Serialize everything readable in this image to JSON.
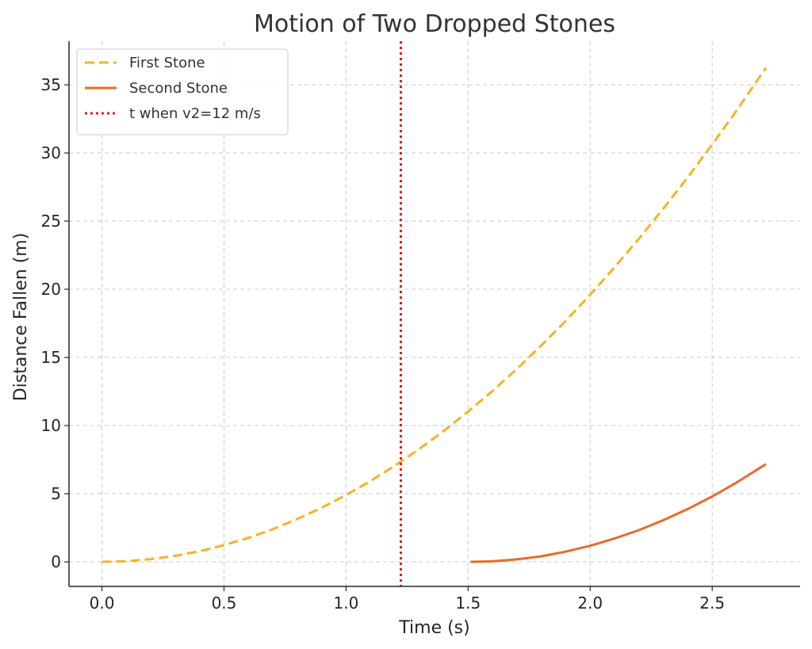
{
  "chart_data": {
    "type": "line",
    "title": "Motion of Two Dropped Stones",
    "xlabel": "Time (s)",
    "ylabel": "Distance Fallen (m)",
    "xlim": [
      -0.135,
      2.86
    ],
    "ylim": [
      -1.8,
      38.2
    ],
    "xticks": [
      0.0,
      0.5,
      1.0,
      1.5,
      2.0,
      2.5
    ],
    "xtick_labels": [
      "0.0",
      "0.5",
      "1.0",
      "1.5",
      "2.0",
      "2.5"
    ],
    "yticks": [
      0,
      5,
      10,
      15,
      20,
      25,
      30,
      35
    ],
    "ytick_labels": [
      "0",
      "5",
      "10",
      "15",
      "20",
      "25",
      "30",
      "35"
    ],
    "grid": true,
    "legend_position": "top-left",
    "series": [
      {
        "name": "First Stone",
        "color": "#f5b324",
        "style": "dashed",
        "x": [
          0.0,
          0.1,
          0.2,
          0.3,
          0.4,
          0.5,
          0.6,
          0.7,
          0.8,
          0.9,
          1.0,
          1.1,
          1.2,
          1.3,
          1.4,
          1.5,
          1.6,
          1.7,
          1.8,
          1.9,
          2.0,
          2.1,
          2.2,
          2.3,
          2.4,
          2.5,
          2.6,
          2.72
        ],
        "y": [
          0.0,
          0.05,
          0.2,
          0.44,
          0.78,
          1.23,
          1.76,
          2.4,
          3.14,
          3.97,
          4.9,
          5.93,
          7.06,
          8.28,
          9.6,
          11.03,
          12.54,
          14.16,
          15.88,
          17.69,
          19.6,
          21.61,
          23.72,
          25.92,
          28.22,
          30.63,
          33.12,
          36.25
        ]
      },
      {
        "name": "Second Stone",
        "color": "#eb6a2a",
        "style": "solid",
        "x": [
          1.51,
          1.6,
          1.7,
          1.8,
          1.9,
          2.0,
          2.1,
          2.2,
          2.3,
          2.4,
          2.5,
          2.6,
          2.72
        ],
        "y": [
          0.0,
          0.04,
          0.18,
          0.41,
          0.75,
          1.18,
          1.71,
          2.33,
          3.06,
          3.88,
          4.8,
          5.82,
          7.17
        ]
      }
    ],
    "vlines": [
      {
        "name": "t when v2=12 m/s",
        "x": 1.2245,
        "color": "#e31a1c",
        "style": "dotted"
      }
    ]
  }
}
